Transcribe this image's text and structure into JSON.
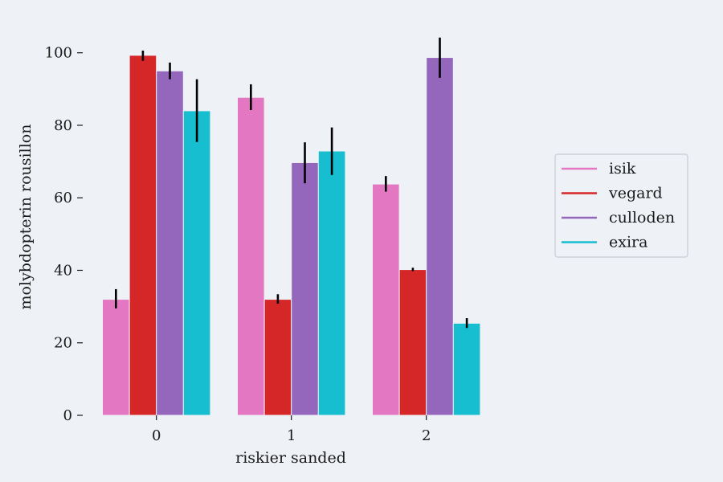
{
  "chart_data": {
    "type": "bar",
    "xlabel": "riskier sanded",
    "ylabel": "molybdopterin rousillon",
    "categories": [
      "0",
      "1",
      "2"
    ],
    "ylim": [
      0,
      108
    ],
    "yticks": [
      0,
      20,
      40,
      60,
      80,
      100
    ],
    "grid": false,
    "legend_position": "right",
    "series": [
      {
        "name": "isik",
        "color": "#e377c2",
        "values": [
          32,
          87.7,
          63.8
        ],
        "error_low": [
          29.5,
          84.2,
          61.7
        ],
        "error_high": [
          34.8,
          91.3,
          66.0
        ]
      },
      {
        "name": "vegard",
        "color": "#d62728",
        "values": [
          99.3,
          32,
          40.2
        ],
        "error_low": [
          97.8,
          30.8,
          39.8
        ],
        "error_high": [
          100.6,
          33.4,
          40.7
        ]
      },
      {
        "name": "culloden",
        "color": "#9467bd",
        "values": [
          95,
          69.7,
          98.7
        ],
        "error_low": [
          92.7,
          64,
          93.1
        ],
        "error_high": [
          97.3,
          75.3,
          104.2
        ]
      },
      {
        "name": "exira",
        "color": "#17becf",
        "values": [
          84,
          72.9,
          25.4
        ],
        "error_low": [
          75.4,
          66.3,
          24.1
        ],
        "error_high": [
          92.7,
          79.4,
          26.8
        ]
      }
    ]
  }
}
